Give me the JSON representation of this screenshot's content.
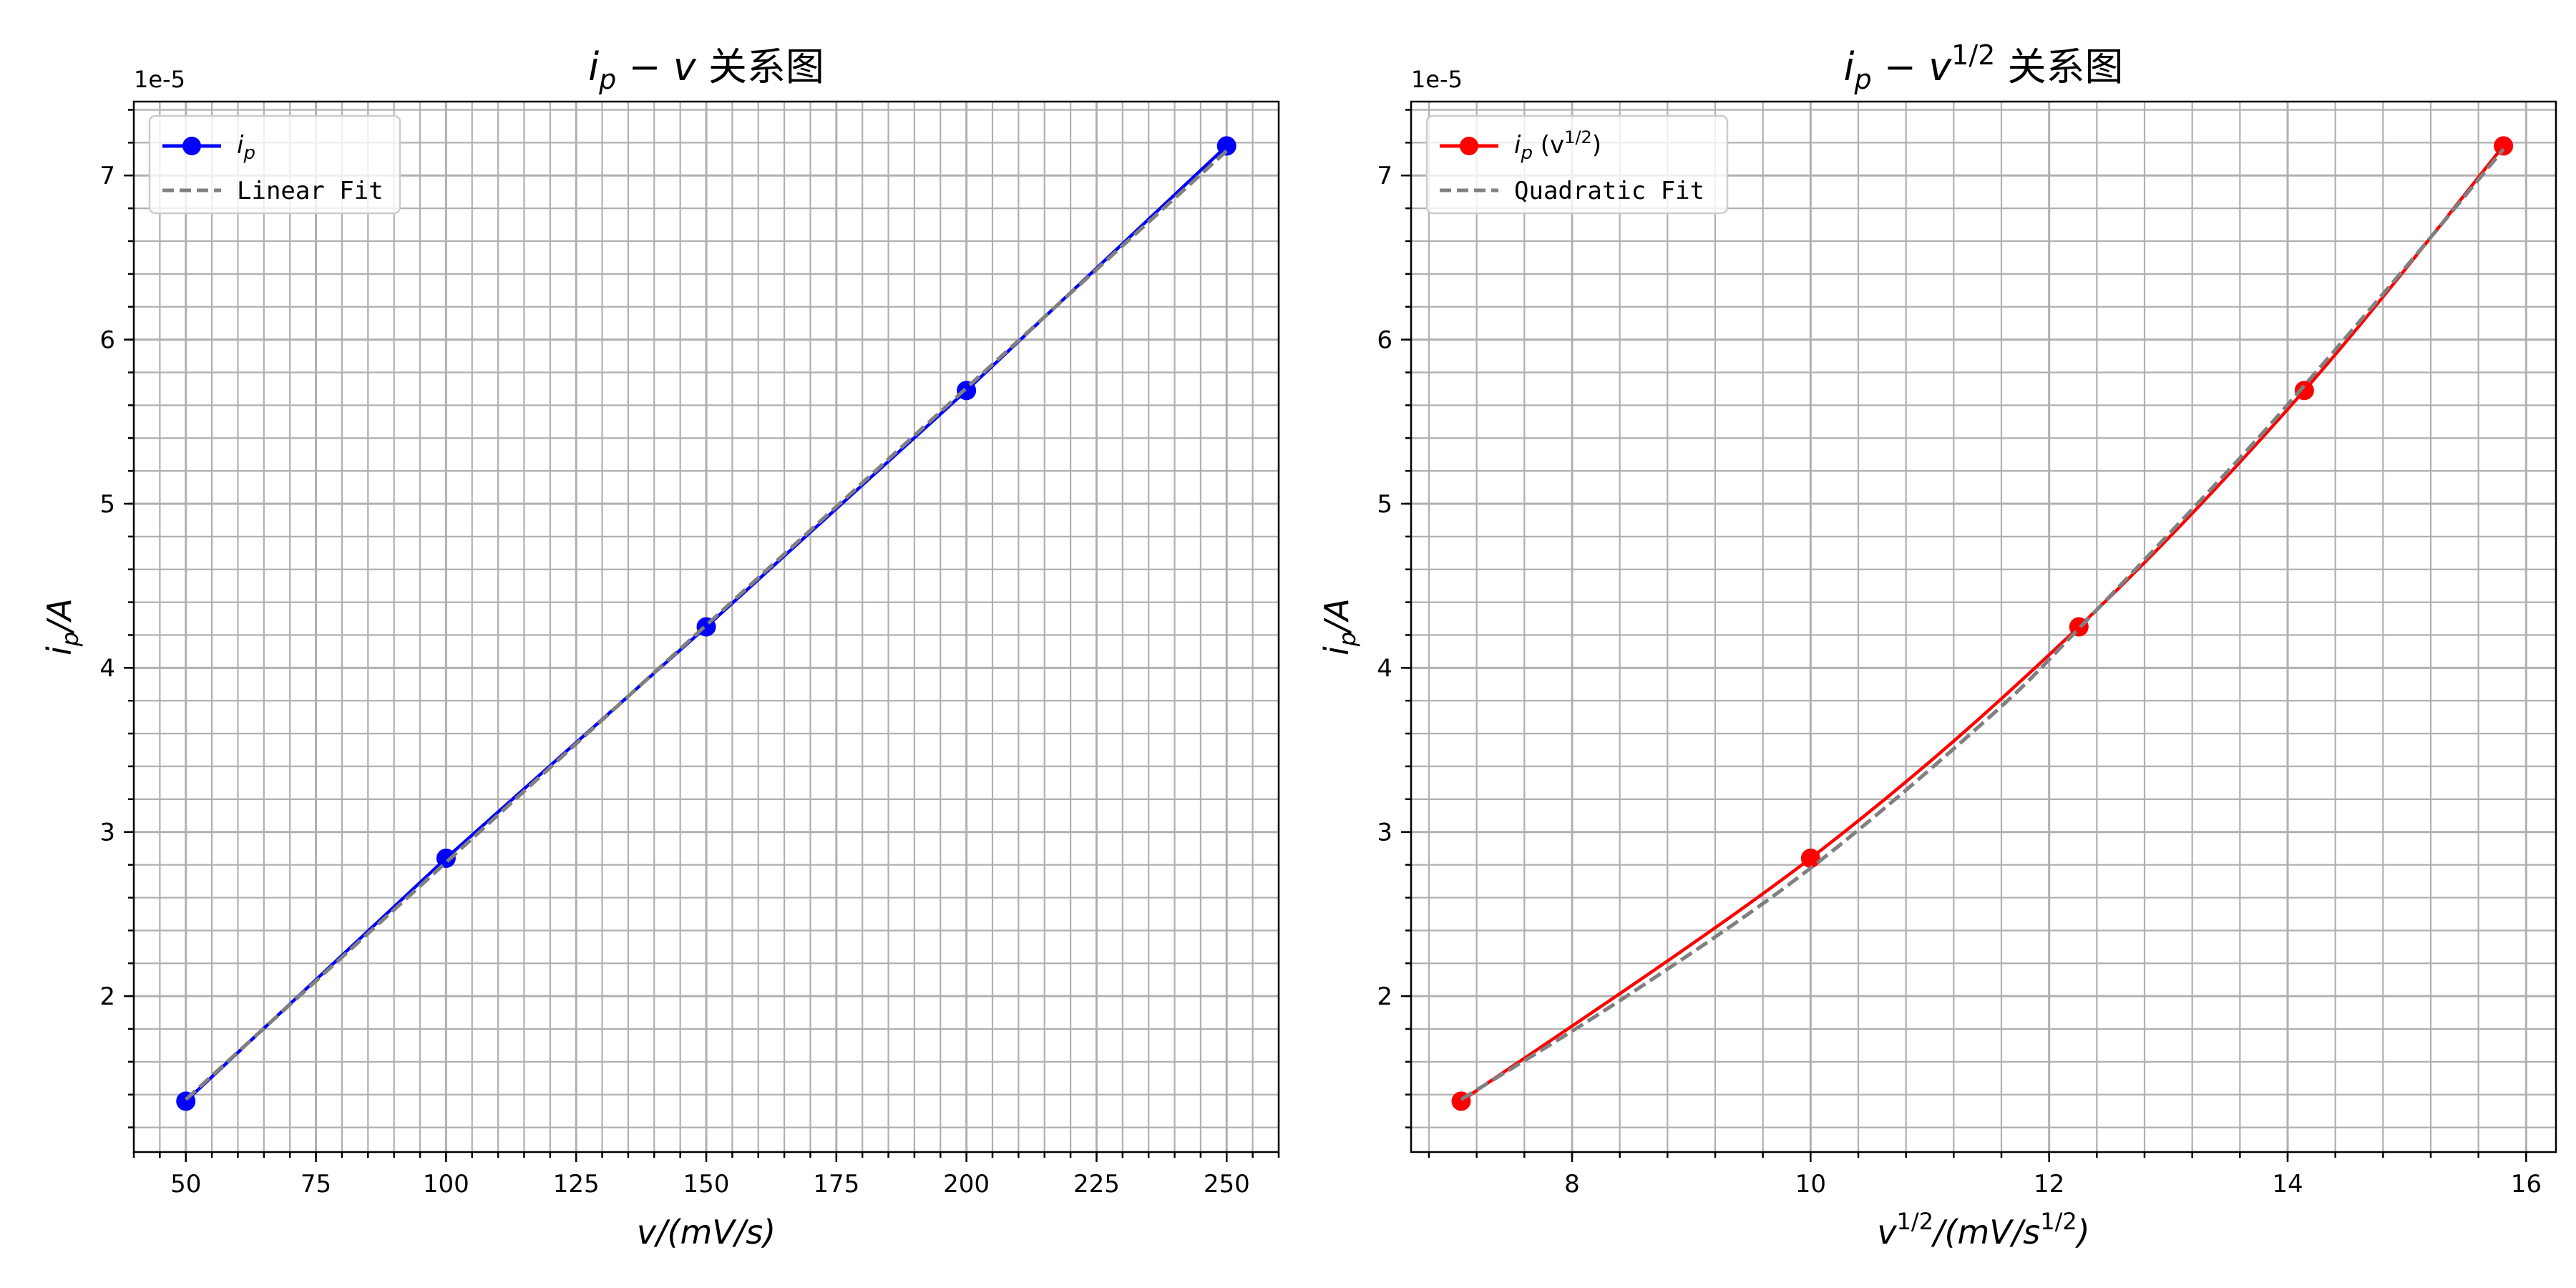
{
  "chart_data": [
    {
      "type": "line",
      "title": "i_p − v 关系图",
      "title_main": "i",
      "title_sub": "p",
      "title_mid": " − v",
      "title_sup": "",
      "title_tail": " 关系图",
      "xlabel_main": "v/(mV/s)",
      "xlabel_sup": "",
      "xlabel_tail": "",
      "ylabel_main": "i",
      "ylabel_sub": "p",
      "ylabel_tail": "/A",
      "offset_text": "1e-5",
      "xlim": [
        40,
        260
      ],
      "ylim": [
        1.05e-05,
        7.45e-05
      ],
      "xticks": [
        50,
        75,
        100,
        125,
        150,
        175,
        200,
        225,
        250
      ],
      "xtick_labels": [
        "50",
        "75",
        "100",
        "125",
        "150",
        "175",
        "200",
        "225",
        "250"
      ],
      "xminor_step": 5,
      "yticks": [
        2e-05,
        3e-05,
        4e-05,
        5e-05,
        6e-05,
        7e-05
      ],
      "ytick_labels": [
        "2",
        "3",
        "4",
        "5",
        "6",
        "7"
      ],
      "yminor_step": 2e-06,
      "grid": true,
      "legend_position": "top-left",
      "series": [
        {
          "name": "i_p",
          "legend_main": "i",
          "legend_sub": "p",
          "legend_tail": "",
          "color": "#0000ff",
          "style": "solid",
          "markers": true,
          "x": [
            50,
            100,
            150,
            200,
            250
          ],
          "y": [
            1.36e-05,
            2.84e-05,
            4.25e-05,
            5.69e-05,
            7.18e-05
          ]
        },
        {
          "name": "Linear Fit",
          "legend_text": "Linear Fit",
          "color": "#808080",
          "style": "dashed",
          "markers": false,
          "x": [
            50,
            250
          ],
          "y": [
            1.37e-05,
            7.15e-05
          ]
        }
      ]
    },
    {
      "type": "line",
      "title": "i_p − v^(1/2) 关系图",
      "title_main": "i",
      "title_sub": "p",
      "title_mid": " − v",
      "title_sup": "1/2",
      "title_tail": " 关系图",
      "xlabel_main": "v",
      "xlabel_sup": "1/2",
      "xlabel_tail": "/(mV/s",
      "xlabel_sup2": "1/2",
      "xlabel_end": ")",
      "ylabel_main": "i",
      "ylabel_sub": "p",
      "ylabel_tail": "/A",
      "offset_text": "1e-5",
      "xlim": [
        6.65,
        16.25
      ],
      "ylim": [
        1.05e-05,
        7.45e-05
      ],
      "xticks": [
        8,
        10,
        12,
        14,
        16
      ],
      "xtick_labels": [
        "8",
        "10",
        "12",
        "14",
        "16"
      ],
      "xminor_step": 0.4,
      "yticks": [
        2e-05,
        3e-05,
        4e-05,
        5e-05,
        6e-05,
        7e-05
      ],
      "ytick_labels": [
        "2",
        "3",
        "4",
        "5",
        "6",
        "7"
      ],
      "yminor_step": 2e-06,
      "grid": true,
      "legend_position": "top-left",
      "series": [
        {
          "name": "i_p (v^(1/2))",
          "legend_main": "i",
          "legend_sub": "p",
          "legend_tail": " (v",
          "legend_sup": "1/2",
          "legend_end": ")",
          "color": "#ff0000",
          "style": "solid",
          "markers": true,
          "smooth": true,
          "x": [
            7.07,
            10.0,
            12.25,
            14.14,
            15.81
          ],
          "y": [
            1.36e-05,
            2.84e-05,
            4.25e-05,
            5.69e-05,
            7.18e-05
          ]
        },
        {
          "name": "Quadratic Fit",
          "legend_text": "Quadratic Fit",
          "color": "#808080",
          "style": "dashed",
          "markers": false,
          "smooth": true,
          "x": [
            7.07,
            8.5,
            10.0,
            11.5,
            12.25,
            13.5,
            14.14,
            15.0,
            15.81
          ],
          "y": [
            1.37e-05,
            2.02e-05,
            2.78e-05,
            3.7e-05,
            4.24e-05,
            5.2e-05,
            5.72e-05,
            6.45e-05,
            7.16e-05
          ]
        }
      ]
    }
  ]
}
